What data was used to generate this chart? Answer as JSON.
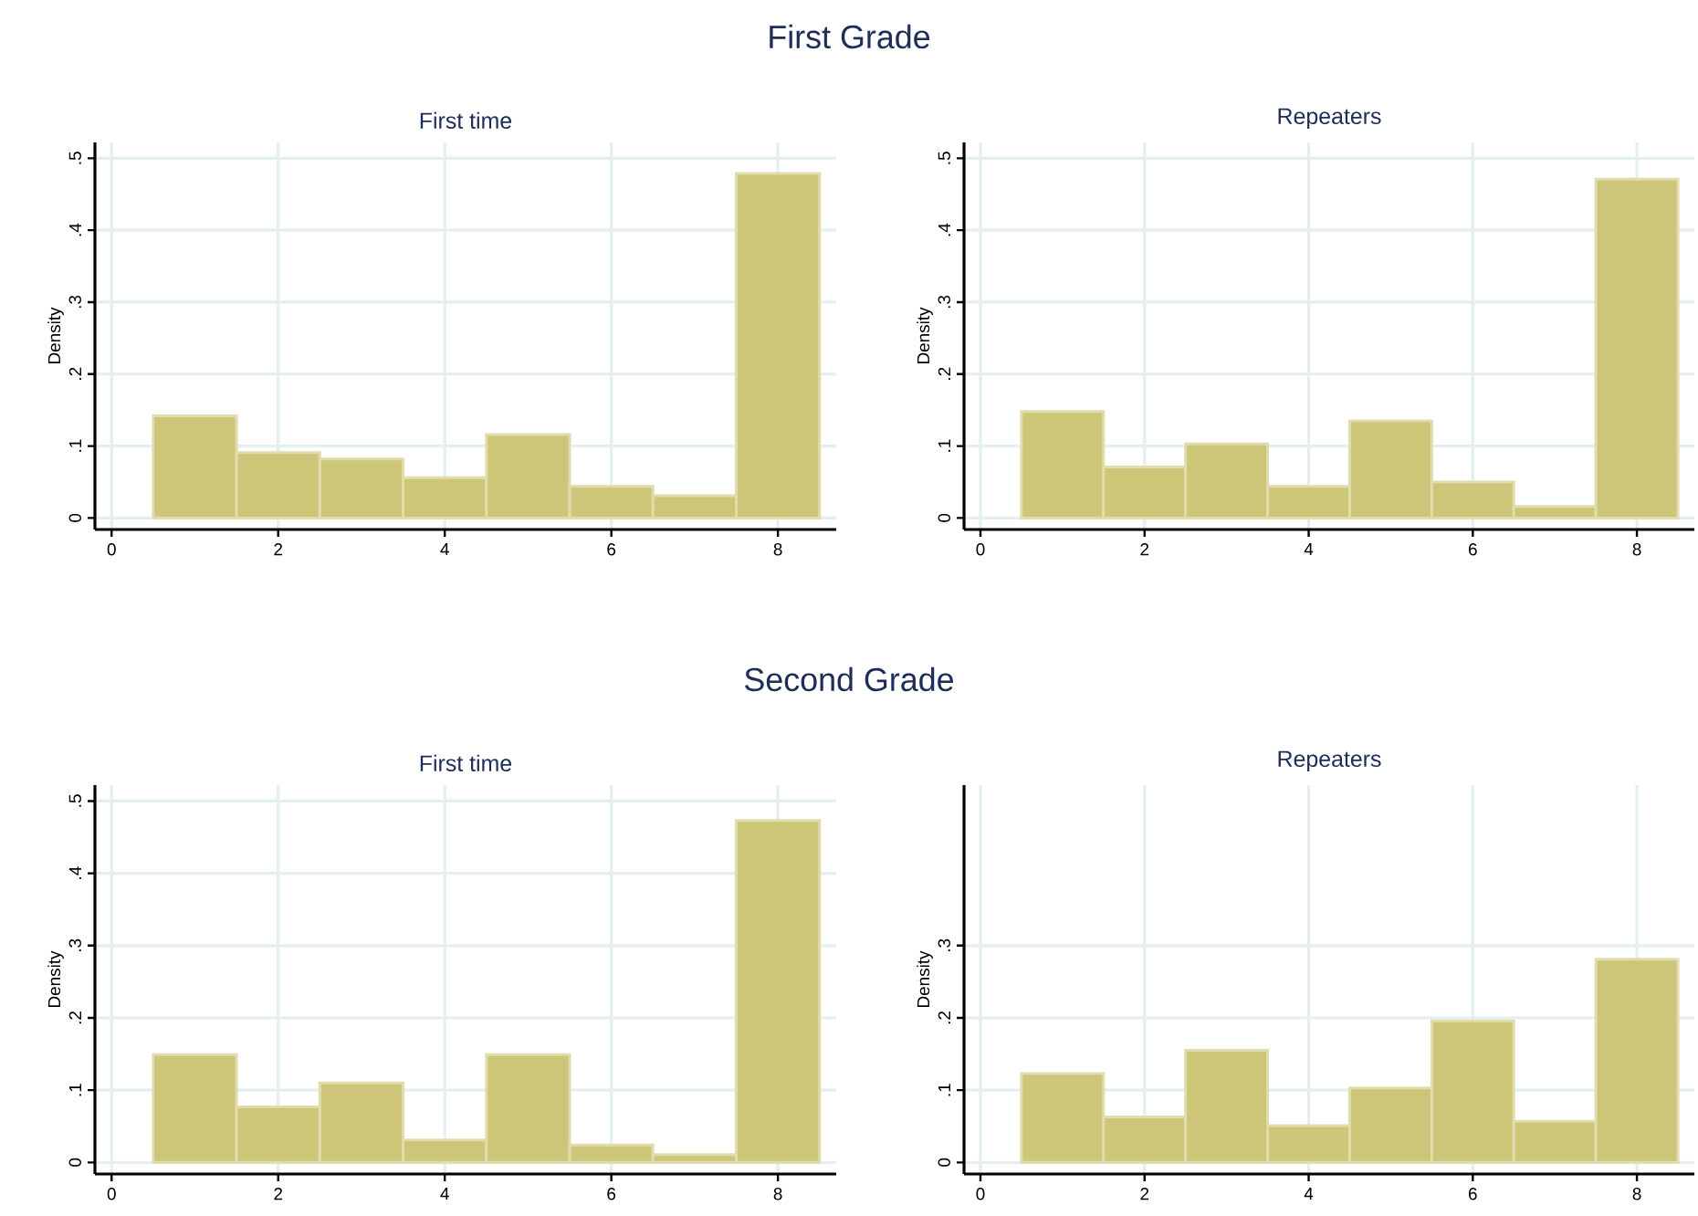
{
  "chart_data": [
    {
      "type": "histogram",
      "title": "First time",
      "annotations": [
        "First Grade"
      ],
      "ylabel": "Density",
      "bins": [
        0.5,
        1.5,
        2.5,
        3.5,
        4.5,
        5.5,
        6.5,
        7.5,
        8.5
      ],
      "values": [
        0.142,
        0.091,
        0.082,
        0.056,
        0.116,
        0.044,
        0.031,
        0.479
      ],
      "color": "#cdc577",
      "xlim": [
        -0.2,
        8.7
      ],
      "ylim": [
        -0.016,
        0.522
      ],
      "xticks": [
        0,
        2,
        4,
        6,
        8
      ],
      "yticks": [
        0,
        {
          "value": 0.1,
          "label": ".1"
        },
        {
          "value": 0.2,
          "label": ".2"
        },
        {
          "value": 0.3,
          "label": ".3"
        },
        {
          "value": 0.4,
          "label": ".4"
        },
        {
          "value": 0.5,
          "label": ".5"
        }
      ],
      "grid": true
    },
    {
      "type": "histogram",
      "title": "Repeaters",
      "ylabel": "Density",
      "bins": [
        0.5,
        1.5,
        2.5,
        3.5,
        4.5,
        5.5,
        6.5,
        7.5,
        8.5
      ],
      "values": [
        0.148,
        0.071,
        0.103,
        0.044,
        0.135,
        0.05,
        0.016,
        0.471
      ],
      "color": "#cdc577",
      "xlim": [
        -0.2,
        8.7
      ],
      "ylim": [
        -0.016,
        0.522
      ],
      "xticks": [
        0,
        2,
        4,
        6,
        8
      ],
      "yticks": [
        0,
        {
          "value": 0.1,
          "label": ".1"
        },
        {
          "value": 0.2,
          "label": ".2"
        },
        {
          "value": 0.3,
          "label": ".3"
        },
        {
          "value": 0.4,
          "label": ".4"
        },
        {
          "value": 0.5,
          "label": ".5"
        }
      ],
      "grid": true
    },
    {
      "type": "histogram",
      "title": "First time",
      "annotations": [
        "Second Grade"
      ],
      "ylabel": "Density",
      "bins": [
        0.5,
        1.5,
        2.5,
        3.5,
        4.5,
        5.5,
        6.5,
        7.5,
        8.5
      ],
      "values": [
        0.149,
        0.077,
        0.11,
        0.031,
        0.149,
        0.024,
        0.011,
        0.473
      ],
      "color": "#cdc577",
      "xlim": [
        -0.2,
        8.7
      ],
      "ylim": [
        -0.016,
        0.522
      ],
      "xticks": [
        0,
        2,
        4,
        6,
        8
      ],
      "yticks": [
        0,
        {
          "value": 0.1,
          "label": ".1"
        },
        {
          "value": 0.2,
          "label": ".2"
        },
        {
          "value": 0.3,
          "label": ".3"
        },
        {
          "value": 0.4,
          "label": ".4"
        },
        {
          "value": 0.5,
          "label": ".5"
        }
      ],
      "grid": true
    },
    {
      "type": "histogram",
      "title": "Repeaters",
      "ylabel": "Density",
      "bins": [
        0.5,
        1.5,
        2.5,
        3.5,
        4.5,
        5.5,
        6.5,
        7.5,
        8.5
      ],
      "values": [
        0.123,
        0.063,
        0.155,
        0.051,
        0.103,
        0.196,
        0.057,
        0.281
      ],
      "color": "#cdc577",
      "xlim": [
        -0.2,
        8.7
      ],
      "ylim": [
        -0.016,
        0.522
      ],
      "xticks": [
        0,
        2,
        4,
        6,
        8
      ],
      "yticks": [
        0,
        {
          "value": 0.1,
          "label": ".1"
        },
        {
          "value": 0.2,
          "label": ".2"
        },
        {
          "value": 0.3,
          "label": ".3"
        }
      ],
      "grid": true
    }
  ]
}
